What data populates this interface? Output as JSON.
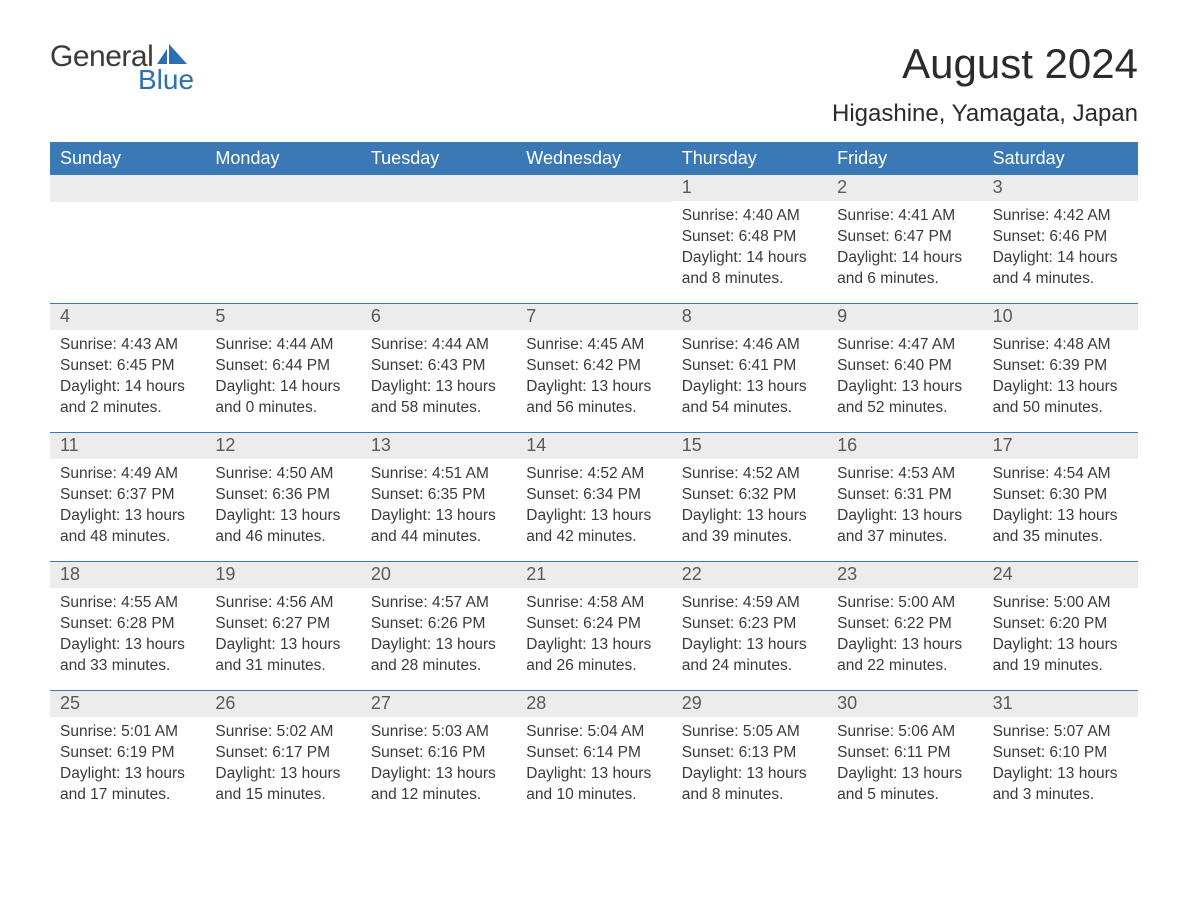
{
  "logo": {
    "text1": "General",
    "text2": "Blue",
    "color_text2": "#2f6fb0",
    "flag_color": "#2f6fb0"
  },
  "title": "August 2024",
  "subtitle": "Higashine, Yamagata, Japan",
  "colors": {
    "header_bg": "#3a78b6",
    "header_text": "#ffffff",
    "daynum_bg": "#ececec",
    "daynum_text": "#5a5a5a",
    "body_text": "#3a3a3a",
    "week_border": "#3a78b6",
    "page_bg": "#ffffff"
  },
  "fonts": {
    "title_size": 42,
    "subtitle_size": 24,
    "dow_size": 18,
    "daynum_size": 18,
    "body_size": 15.5
  },
  "days_of_week": [
    "Sunday",
    "Monday",
    "Tuesday",
    "Wednesday",
    "Thursday",
    "Friday",
    "Saturday"
  ],
  "weeks": [
    [
      null,
      null,
      null,
      null,
      {
        "n": "1",
        "sunrise": "Sunrise: 4:40 AM",
        "sunset": "Sunset: 6:48 PM",
        "daylight": "Daylight: 14 hours and 8 minutes."
      },
      {
        "n": "2",
        "sunrise": "Sunrise: 4:41 AM",
        "sunset": "Sunset: 6:47 PM",
        "daylight": "Daylight: 14 hours and 6 minutes."
      },
      {
        "n": "3",
        "sunrise": "Sunrise: 4:42 AM",
        "sunset": "Sunset: 6:46 PM",
        "daylight": "Daylight: 14 hours and 4 minutes."
      }
    ],
    [
      {
        "n": "4",
        "sunrise": "Sunrise: 4:43 AM",
        "sunset": "Sunset: 6:45 PM",
        "daylight": "Daylight: 14 hours and 2 minutes."
      },
      {
        "n": "5",
        "sunrise": "Sunrise: 4:44 AM",
        "sunset": "Sunset: 6:44 PM",
        "daylight": "Daylight: 14 hours and 0 minutes."
      },
      {
        "n": "6",
        "sunrise": "Sunrise: 4:44 AM",
        "sunset": "Sunset: 6:43 PM",
        "daylight": "Daylight: 13 hours and 58 minutes."
      },
      {
        "n": "7",
        "sunrise": "Sunrise: 4:45 AM",
        "sunset": "Sunset: 6:42 PM",
        "daylight": "Daylight: 13 hours and 56 minutes."
      },
      {
        "n": "8",
        "sunrise": "Sunrise: 4:46 AM",
        "sunset": "Sunset: 6:41 PM",
        "daylight": "Daylight: 13 hours and 54 minutes."
      },
      {
        "n": "9",
        "sunrise": "Sunrise: 4:47 AM",
        "sunset": "Sunset: 6:40 PM",
        "daylight": "Daylight: 13 hours and 52 minutes."
      },
      {
        "n": "10",
        "sunrise": "Sunrise: 4:48 AM",
        "sunset": "Sunset: 6:39 PM",
        "daylight": "Daylight: 13 hours and 50 minutes."
      }
    ],
    [
      {
        "n": "11",
        "sunrise": "Sunrise: 4:49 AM",
        "sunset": "Sunset: 6:37 PM",
        "daylight": "Daylight: 13 hours and 48 minutes."
      },
      {
        "n": "12",
        "sunrise": "Sunrise: 4:50 AM",
        "sunset": "Sunset: 6:36 PM",
        "daylight": "Daylight: 13 hours and 46 minutes."
      },
      {
        "n": "13",
        "sunrise": "Sunrise: 4:51 AM",
        "sunset": "Sunset: 6:35 PM",
        "daylight": "Daylight: 13 hours and 44 minutes."
      },
      {
        "n": "14",
        "sunrise": "Sunrise: 4:52 AM",
        "sunset": "Sunset: 6:34 PM",
        "daylight": "Daylight: 13 hours and 42 minutes."
      },
      {
        "n": "15",
        "sunrise": "Sunrise: 4:52 AM",
        "sunset": "Sunset: 6:32 PM",
        "daylight": "Daylight: 13 hours and 39 minutes."
      },
      {
        "n": "16",
        "sunrise": "Sunrise: 4:53 AM",
        "sunset": "Sunset: 6:31 PM",
        "daylight": "Daylight: 13 hours and 37 minutes."
      },
      {
        "n": "17",
        "sunrise": "Sunrise: 4:54 AM",
        "sunset": "Sunset: 6:30 PM",
        "daylight": "Daylight: 13 hours and 35 minutes."
      }
    ],
    [
      {
        "n": "18",
        "sunrise": "Sunrise: 4:55 AM",
        "sunset": "Sunset: 6:28 PM",
        "daylight": "Daylight: 13 hours and 33 minutes."
      },
      {
        "n": "19",
        "sunrise": "Sunrise: 4:56 AM",
        "sunset": "Sunset: 6:27 PM",
        "daylight": "Daylight: 13 hours and 31 minutes."
      },
      {
        "n": "20",
        "sunrise": "Sunrise: 4:57 AM",
        "sunset": "Sunset: 6:26 PM",
        "daylight": "Daylight: 13 hours and 28 minutes."
      },
      {
        "n": "21",
        "sunrise": "Sunrise: 4:58 AM",
        "sunset": "Sunset: 6:24 PM",
        "daylight": "Daylight: 13 hours and 26 minutes."
      },
      {
        "n": "22",
        "sunrise": "Sunrise: 4:59 AM",
        "sunset": "Sunset: 6:23 PM",
        "daylight": "Daylight: 13 hours and 24 minutes."
      },
      {
        "n": "23",
        "sunrise": "Sunrise: 5:00 AM",
        "sunset": "Sunset: 6:22 PM",
        "daylight": "Daylight: 13 hours and 22 minutes."
      },
      {
        "n": "24",
        "sunrise": "Sunrise: 5:00 AM",
        "sunset": "Sunset: 6:20 PM",
        "daylight": "Daylight: 13 hours and 19 minutes."
      }
    ],
    [
      {
        "n": "25",
        "sunrise": "Sunrise: 5:01 AM",
        "sunset": "Sunset: 6:19 PM",
        "daylight": "Daylight: 13 hours and 17 minutes."
      },
      {
        "n": "26",
        "sunrise": "Sunrise: 5:02 AM",
        "sunset": "Sunset: 6:17 PM",
        "daylight": "Daylight: 13 hours and 15 minutes."
      },
      {
        "n": "27",
        "sunrise": "Sunrise: 5:03 AM",
        "sunset": "Sunset: 6:16 PM",
        "daylight": "Daylight: 13 hours and 12 minutes."
      },
      {
        "n": "28",
        "sunrise": "Sunrise: 5:04 AM",
        "sunset": "Sunset: 6:14 PM",
        "daylight": "Daylight: 13 hours and 10 minutes."
      },
      {
        "n": "29",
        "sunrise": "Sunrise: 5:05 AM",
        "sunset": "Sunset: 6:13 PM",
        "daylight": "Daylight: 13 hours and 8 minutes."
      },
      {
        "n": "30",
        "sunrise": "Sunrise: 5:06 AM",
        "sunset": "Sunset: 6:11 PM",
        "daylight": "Daylight: 13 hours and 5 minutes."
      },
      {
        "n": "31",
        "sunrise": "Sunrise: 5:07 AM",
        "sunset": "Sunset: 6:10 PM",
        "daylight": "Daylight: 13 hours and 3 minutes."
      }
    ]
  ]
}
